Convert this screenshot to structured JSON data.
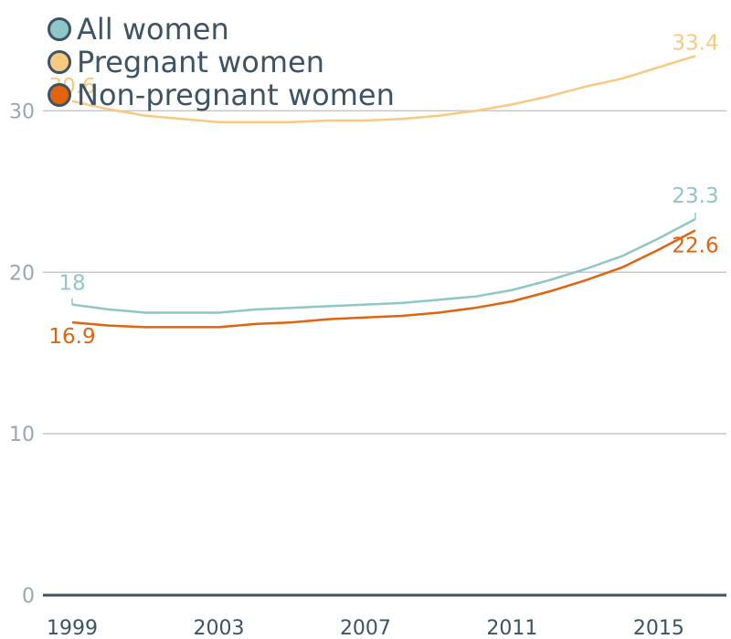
{
  "chart_data": {
    "type": "line",
    "x": [
      1999,
      2000,
      2001,
      2002,
      2003,
      2004,
      2005,
      2006,
      2007,
      2008,
      2009,
      2010,
      2011,
      2012,
      2013,
      2014,
      2015,
      2016
    ],
    "series": [
      {
        "name": "All women",
        "color": "#8fc7c6",
        "values": [
          18.0,
          17.7,
          17.5,
          17.5,
          17.5,
          17.7,
          17.8,
          17.9,
          18.0,
          18.1,
          18.3,
          18.5,
          18.9,
          19.5,
          20.2,
          21.0,
          22.1,
          23.3
        ],
        "start_label": "18",
        "end_label": "23.3"
      },
      {
        "name": "Pregnant women",
        "color": "#f8c980",
        "values": [
          30.6,
          30.1,
          29.7,
          29.5,
          29.3,
          29.3,
          29.3,
          29.4,
          29.4,
          29.5,
          29.7,
          30.0,
          30.4,
          30.9,
          31.5,
          32.0,
          32.7,
          33.4
        ],
        "start_label": "30.6",
        "end_label": "33.4"
      },
      {
        "name": "Non-pregnant women",
        "color": "#e2630e",
        "values": [
          16.9,
          16.7,
          16.6,
          16.6,
          16.6,
          16.8,
          16.9,
          17.1,
          17.2,
          17.3,
          17.5,
          17.8,
          18.2,
          18.8,
          19.5,
          20.3,
          21.4,
          22.6
        ],
        "start_label": "16.9",
        "end_label": "22.6"
      }
    ],
    "x_ticks": [
      "1999",
      "2003",
      "2007",
      "2011",
      "2015"
    ],
    "y_ticks": [
      "0",
      "10",
      "20",
      "30"
    ],
    "ylim": [
      0,
      35
    ],
    "xlim": [
      1999,
      2016
    ],
    "grid": true,
    "legend_position": "top-left",
    "title": "",
    "xlabel": "",
    "ylabel": ""
  },
  "colors": {
    "text": "#3d5366",
    "axis": "#3d5366",
    "grid": "#c8c8c8",
    "tick_y": "#9aa7b3"
  }
}
